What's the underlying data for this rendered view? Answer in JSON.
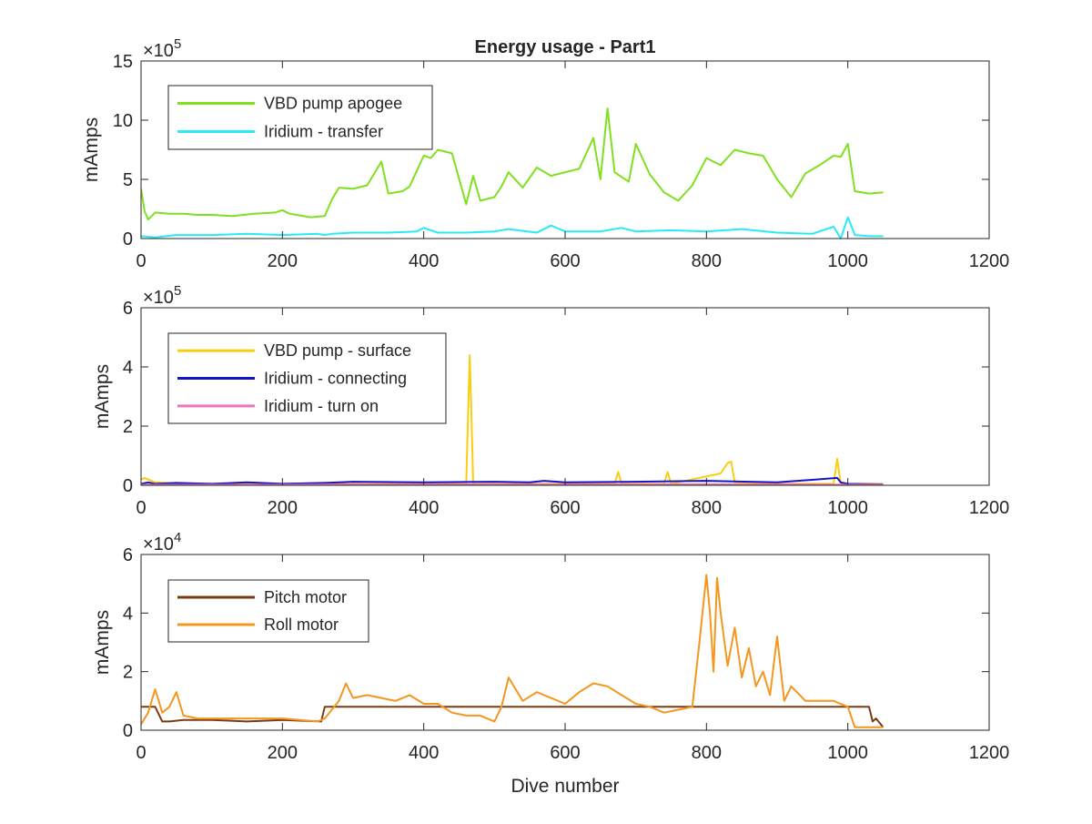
{
  "colors": {
    "axis": "#262626",
    "background": "#ffffff"
  },
  "chart_data": [
    {
      "type": "line",
      "title": "Energy usage - Part1",
      "xlabel": "",
      "ylabel": "mAmps",
      "exponent_base": "×10",
      "exponent_power": "5",
      "xlim": [
        0,
        1200
      ],
      "ylim": [
        0,
        15
      ],
      "xticks": [
        0,
        200,
        400,
        600,
        800,
        1000,
        1200
      ],
      "xtick_labels": [
        "0",
        "200",
        "400",
        "600",
        "800",
        "1000",
        "1200"
      ],
      "yticks": [
        0,
        5,
        10,
        15
      ],
      "ytick_labels": [
        "0",
        "5",
        "10",
        "15"
      ],
      "legend_position": "top-left",
      "grid": false,
      "series": [
        {
          "name": "VBD pump apogee",
          "color": "#7FE11E",
          "x": [
            0,
            5,
            10,
            20,
            40,
            60,
            80,
            100,
            130,
            160,
            190,
            200,
            210,
            240,
            260,
            270,
            280,
            300,
            320,
            340,
            350,
            370,
            380,
            400,
            410,
            420,
            440,
            460,
            470,
            480,
            500,
            510,
            520,
            540,
            560,
            580,
            600,
            620,
            640,
            650,
            660,
            670,
            690,
            700,
            720,
            740,
            760,
            780,
            800,
            820,
            840,
            860,
            880,
            900,
            920,
            940,
            960,
            980,
            990,
            1000,
            1010,
            1030,
            1050
          ],
          "values": [
            4.2,
            2.3,
            1.6,
            2.2,
            2.1,
            2.1,
            2.0,
            2.0,
            1.9,
            2.1,
            2.2,
            2.4,
            2.1,
            1.8,
            1.9,
            3.3,
            4.3,
            4.2,
            4.5,
            6.5,
            3.8,
            4.0,
            4.4,
            7.0,
            6.8,
            7.5,
            7.2,
            2.9,
            5.3,
            3.2,
            3.5,
            4.4,
            5.6,
            4.3,
            6.0,
            5.3,
            5.6,
            5.9,
            8.5,
            5.0,
            11.0,
            5.6,
            4.8,
            8.0,
            5.4,
            3.9,
            3.2,
            4.5,
            6.8,
            6.2,
            7.5,
            7.2,
            7.0,
            5.0,
            3.5,
            5.5,
            6.2,
            7.0,
            6.9,
            8.0,
            4.0,
            3.8,
            3.9
          ]
        },
        {
          "name": "Iridium - transfer",
          "color": "#29EAF6",
          "x": [
            0,
            20,
            50,
            100,
            150,
            200,
            250,
            260,
            270,
            300,
            350,
            390,
            400,
            420,
            460,
            500,
            520,
            560,
            580,
            600,
            650,
            680,
            700,
            750,
            800,
            850,
            900,
            950,
            980,
            990,
            1000,
            1010,
            1030,
            1050
          ],
          "values": [
            0.2,
            0.1,
            0.3,
            0.3,
            0.4,
            0.3,
            0.4,
            0.3,
            0.4,
            0.5,
            0.5,
            0.6,
            0.9,
            0.5,
            0.5,
            0.6,
            0.8,
            0.5,
            1.1,
            0.6,
            0.6,
            0.9,
            0.6,
            0.7,
            0.6,
            0.8,
            0.5,
            0.4,
            1.0,
            0.0,
            1.8,
            0.3,
            0.2,
            0.2
          ]
        }
      ]
    },
    {
      "type": "line",
      "title": "",
      "xlabel": "",
      "ylabel": "mAmps",
      "exponent_base": "×10",
      "exponent_power": "5",
      "xlim": [
        0,
        1200
      ],
      "ylim": [
        0,
        6
      ],
      "xticks": [
        0,
        200,
        400,
        600,
        800,
        1000,
        1200
      ],
      "xtick_labels": [
        "0",
        "200",
        "400",
        "600",
        "800",
        "1000",
        "1200"
      ],
      "yticks": [
        0,
        2,
        4,
        6
      ],
      "ytick_labels": [
        "0",
        "2",
        "4",
        "6"
      ],
      "legend_position": "top-left",
      "grid": false,
      "series": [
        {
          "name": "VBD pump - surface",
          "color": "#F8CF10",
          "x": [
            0,
            5,
            20,
            60,
            100,
            200,
            300,
            400,
            460,
            465,
            467,
            470,
            480,
            600,
            670,
            675,
            680,
            740,
            745,
            750,
            820,
            830,
            835,
            840,
            900,
            980,
            985,
            990,
            1050
          ],
          "values": [
            0.2,
            0.25,
            0.1,
            0.05,
            0.05,
            0.05,
            0.05,
            0.05,
            0.05,
            4.4,
            2.8,
            0.05,
            0.05,
            0.05,
            0.05,
            0.45,
            0.05,
            0.05,
            0.45,
            0.05,
            0.4,
            0.75,
            0.8,
            0.1,
            0.05,
            0.05,
            0.9,
            0.05,
            0.05
          ]
        },
        {
          "name": "Iridium - connecting",
          "color": "#1414C8",
          "x": [
            0,
            10,
            20,
            50,
            100,
            150,
            200,
            260,
            300,
            400,
            500,
            550,
            570,
            600,
            700,
            800,
            900,
            985,
            990,
            1000,
            1050
          ],
          "values": [
            0.05,
            0.1,
            0.05,
            0.08,
            0.05,
            0.1,
            0.05,
            0.08,
            0.12,
            0.1,
            0.12,
            0.1,
            0.15,
            0.1,
            0.12,
            0.15,
            0.1,
            0.25,
            0.1,
            0.05,
            0.03
          ]
        },
        {
          "name": "Iridium - turn on",
          "color": "#F075B8",
          "x": [
            0,
            100,
            200,
            300,
            400,
            500,
            600,
            700,
            800,
            900,
            1000,
            1050
          ],
          "values": [
            0.02,
            0.02,
            0.02,
            0.03,
            0.03,
            0.03,
            0.03,
            0.03,
            0.03,
            0.03,
            0.02,
            0.02
          ]
        }
      ]
    },
    {
      "type": "line",
      "title": "",
      "xlabel": "Dive number",
      "ylabel": "mAmps",
      "exponent_base": "×10",
      "exponent_power": "4",
      "xlim": [
        0,
        1200
      ],
      "ylim": [
        0,
        6
      ],
      "xticks": [
        0,
        200,
        400,
        600,
        800,
        1000,
        1200
      ],
      "xtick_labels": [
        "0",
        "200",
        "400",
        "600",
        "800",
        "1000",
        "1200"
      ],
      "yticks": [
        0,
        2,
        4,
        6
      ],
      "ytick_labels": [
        "0",
        "2",
        "4",
        "6"
      ],
      "legend_position": "top-left",
      "grid": false,
      "series": [
        {
          "name": "Pitch motor",
          "color": "#7B3B12",
          "x": [
            0,
            5,
            20,
            30,
            40,
            60,
            100,
            150,
            200,
            255,
            260,
            300,
            400,
            500,
            600,
            700,
            800,
            900,
            1000,
            1030,
            1035,
            1040,
            1050
          ],
          "values": [
            0.8,
            0.8,
            0.8,
            0.3,
            0.3,
            0.35,
            0.35,
            0.3,
            0.35,
            0.3,
            0.8,
            0.8,
            0.8,
            0.8,
            0.8,
            0.8,
            0.8,
            0.8,
            0.8,
            0.8,
            0.3,
            0.4,
            0.1
          ]
        },
        {
          "name": "Roll motor",
          "color": "#F5961E",
          "x": [
            0,
            10,
            20,
            30,
            40,
            50,
            60,
            80,
            100,
            150,
            200,
            250,
            260,
            280,
            290,
            300,
            320,
            340,
            360,
            380,
            400,
            420,
            440,
            460,
            480,
            500,
            510,
            520,
            540,
            560,
            580,
            600,
            620,
            640,
            660,
            680,
            700,
            720,
            740,
            760,
            780,
            790,
            800,
            805,
            810,
            815,
            820,
            830,
            840,
            850,
            860,
            870,
            880,
            890,
            900,
            910,
            920,
            940,
            960,
            980,
            1000,
            1010,
            1040,
            1050
          ],
          "values": [
            0.2,
            0.6,
            1.4,
            0.6,
            0.8,
            1.3,
            0.5,
            0.4,
            0.4,
            0.4,
            0.4,
            0.3,
            0.4,
            1.0,
            1.6,
            1.1,
            1.2,
            1.1,
            1.0,
            1.2,
            0.9,
            0.9,
            0.6,
            0.5,
            0.5,
            0.3,
            0.8,
            1.8,
            1.0,
            1.3,
            1.1,
            0.9,
            1.3,
            1.6,
            1.5,
            1.2,
            0.9,
            0.8,
            0.6,
            0.7,
            0.8,
            3.0,
            5.3,
            4.0,
            2.0,
            5.2,
            4.0,
            2.2,
            3.5,
            1.8,
            2.8,
            1.5,
            2.0,
            1.2,
            3.2,
            1.0,
            1.5,
            1.0,
            1.0,
            1.0,
            0.8,
            0.1,
            0.1,
            0.1
          ]
        }
      ]
    }
  ]
}
